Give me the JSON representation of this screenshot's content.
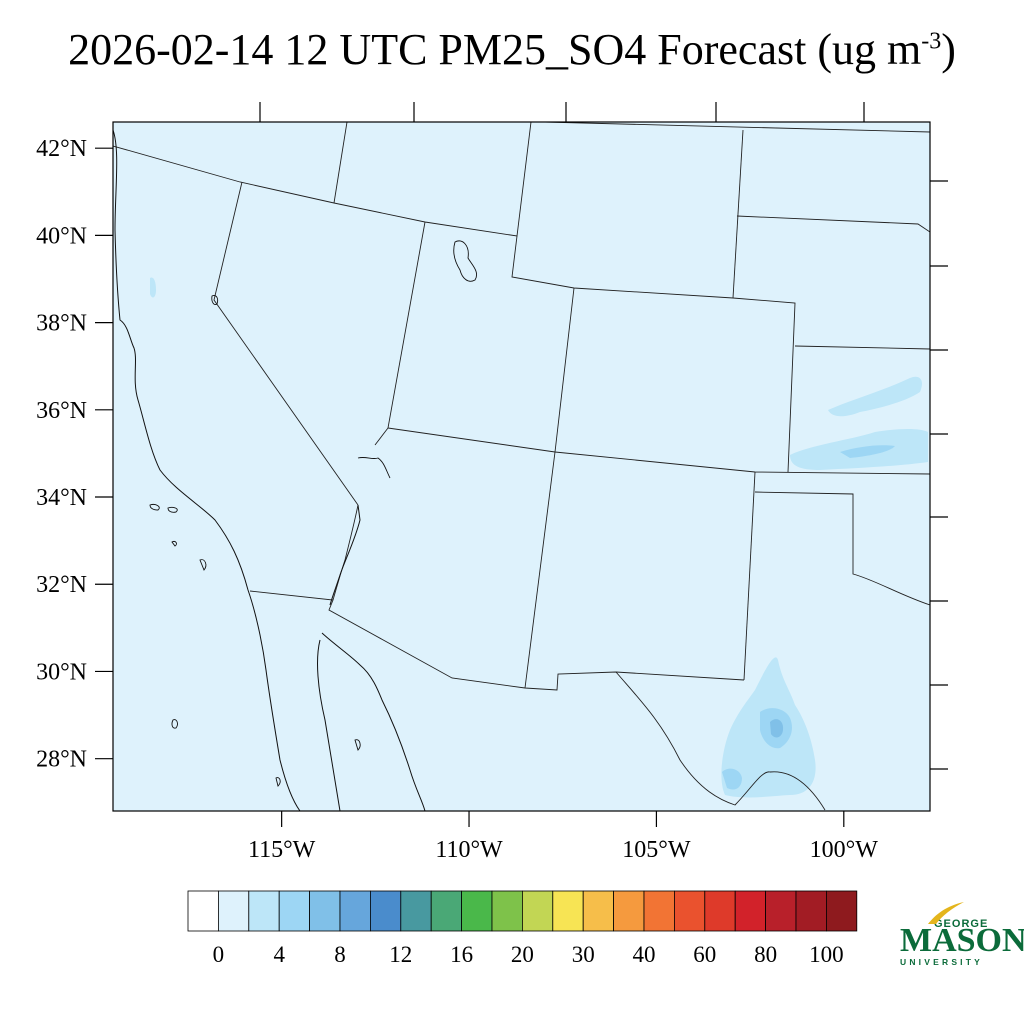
{
  "title": {
    "main": "2026-02-14 12 UTC PM25_SO4 Forecast (ug m",
    "superscript": "-3",
    "tail": ")"
  },
  "map": {
    "lon_range": [
      -119.5,
      -97.7
    ],
    "lat_range": [
      26.8,
      42.6
    ],
    "background_color": "#def2fc",
    "boundary_color": "#222222",
    "x_ticks": [
      {
        "lon": -115,
        "label": "115°W"
      },
      {
        "lon": -110,
        "label": "110°W"
      },
      {
        "lon": -105,
        "label": "105°W"
      },
      {
        "lon": -100,
        "label": "100°W"
      }
    ],
    "y_ticks": [
      {
        "lat": 42,
        "label": "42°N"
      },
      {
        "lat": 40,
        "label": "40°N"
      },
      {
        "lat": 38,
        "label": "38°N"
      },
      {
        "lat": 36,
        "label": "36°N"
      },
      {
        "lat": 34,
        "label": "34°N"
      },
      {
        "lat": 32,
        "label": "32°N"
      },
      {
        "lat": 30,
        "label": "30°N"
      },
      {
        "lat": 28,
        "label": "28°N"
      }
    ]
  },
  "colorbar": {
    "colors": [
      "#ffffff",
      "#def2fc",
      "#bde6f8",
      "#9dd6f4",
      "#80c0e8",
      "#66a6dc",
      "#4a8ccc",
      "#4899a0",
      "#4aa876",
      "#4ab84a",
      "#7ec24a",
      "#c2d654",
      "#f7e454",
      "#f6be4a",
      "#f59a3e",
      "#f27434",
      "#ea522e",
      "#de3a2a",
      "#d2222a",
      "#b8202a",
      "#a21c24",
      "#8e1a1e"
    ],
    "labels": [
      "0",
      "4",
      "8",
      "12",
      "16",
      "20",
      "30",
      "40",
      "60",
      "80",
      "100"
    ]
  },
  "logo": {
    "george": "GEORGE",
    "mason": "MASON",
    "university": "UNIVERSITY",
    "color": "#0b6b3a"
  }
}
